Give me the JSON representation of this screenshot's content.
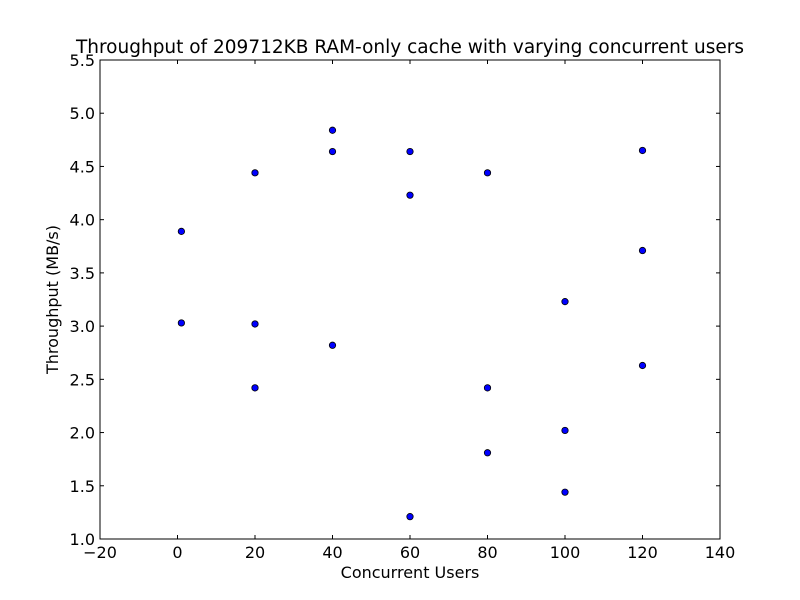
{
  "chart_data": {
    "type": "scatter",
    "title": "Throughput of 209712KB RAM-only cache with varying concurrent users",
    "xlabel": "Concurrent Users",
    "ylabel": "Throughput (MB/s)",
    "xlim": [
      -20,
      140
    ],
    "ylim": [
      1.0,
      5.5
    ],
    "x_ticks": [
      -20,
      0,
      20,
      40,
      60,
      80,
      100,
      120,
      140
    ],
    "x_tick_labels": [
      "−20",
      "0",
      "20",
      "40",
      "60",
      "80",
      "100",
      "120",
      "140"
    ],
    "y_ticks": [
      1.0,
      1.5,
      2.0,
      2.5,
      3.0,
      3.5,
      4.0,
      4.5,
      5.0,
      5.5
    ],
    "y_tick_labels": [
      "1.0",
      "1.5",
      "2.0",
      "2.5",
      "3.0",
      "3.5",
      "4.0",
      "4.5",
      "5.0",
      "5.5"
    ],
    "grid": false,
    "marker_color": "#0000ff",
    "marker_edge_color": "#000000",
    "points": [
      {
        "x": 1,
        "y": 3.89
      },
      {
        "x": 1,
        "y": 3.03
      },
      {
        "x": 20,
        "y": 4.44
      },
      {
        "x": 20,
        "y": 3.02
      },
      {
        "x": 20,
        "y": 2.42
      },
      {
        "x": 40,
        "y": 4.84
      },
      {
        "x": 40,
        "y": 4.64
      },
      {
        "x": 40,
        "y": 2.82
      },
      {
        "x": 60,
        "y": 4.64
      },
      {
        "x": 60,
        "y": 4.23
      },
      {
        "x": 60,
        "y": 1.21
      },
      {
        "x": 80,
        "y": 4.44
      },
      {
        "x": 80,
        "y": 2.42
      },
      {
        "x": 80,
        "y": 1.81
      },
      {
        "x": 100,
        "y": 3.23
      },
      {
        "x": 100,
        "y": 2.02
      },
      {
        "x": 100,
        "y": 1.44
      },
      {
        "x": 120,
        "y": 4.65
      },
      {
        "x": 120,
        "y": 3.71
      },
      {
        "x": 120,
        "y": 2.63
      }
    ]
  }
}
